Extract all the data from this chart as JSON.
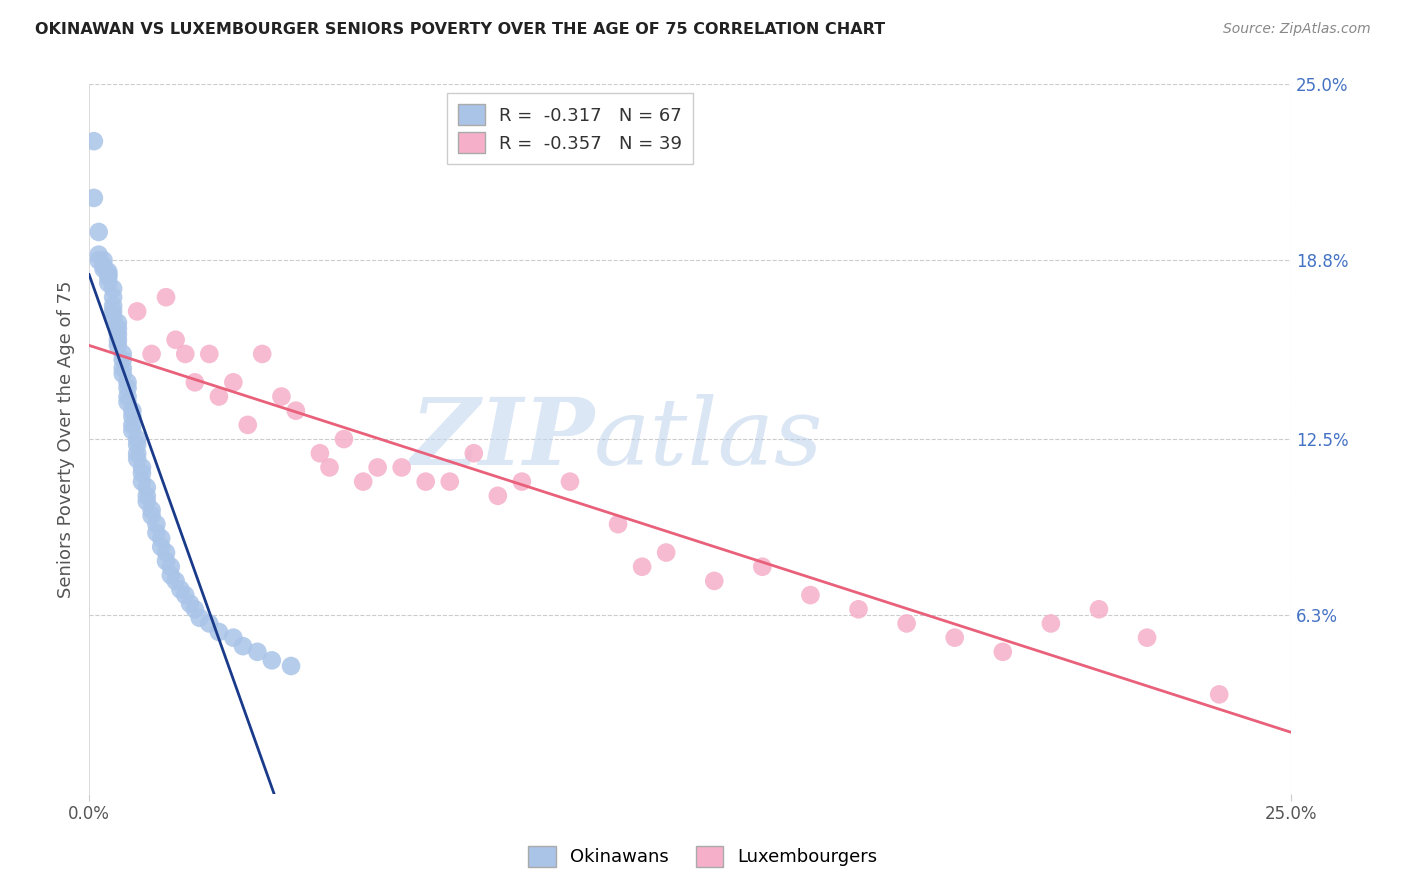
{
  "title": "OKINAWAN VS LUXEMBOURGER SENIORS POVERTY OVER THE AGE OF 75 CORRELATION CHART",
  "source": "Source: ZipAtlas.com",
  "ylabel": "Seniors Poverty Over the Age of 75",
  "xlim": [
    0.0,
    0.25
  ],
  "ylim": [
    0.0,
    0.25
  ],
  "ytick_labels_right": [
    "25.0%",
    "18.8%",
    "12.5%",
    "6.3%"
  ],
  "ytick_positions_right": [
    0.25,
    0.188,
    0.125,
    0.063
  ],
  "grid_color": "#cccccc",
  "background_color": "#ffffff",
  "okinawan_color": "#aac4e8",
  "luxembourger_color": "#f5afc8",
  "okinawan_line_color": "#1a3a8a",
  "luxembourger_line_color": "#e8607a",
  "R_okinawan": -0.317,
  "N_okinawan": 67,
  "R_luxembourger": -0.357,
  "N_luxembourger": 39,
  "watermark_zip": "ZIP",
  "watermark_atlas": "atlas",
  "legend_label_ok": "R =  -0.317   N = 67",
  "legend_label_lux": "R =  -0.357   N = 39",
  "ok_x": [
    0.001,
    0.001,
    0.002,
    0.002,
    0.002,
    0.003,
    0.003,
    0.003,
    0.004,
    0.004,
    0.004,
    0.004,
    0.005,
    0.005,
    0.005,
    0.005,
    0.005,
    0.006,
    0.006,
    0.006,
    0.006,
    0.006,
    0.007,
    0.007,
    0.007,
    0.007,
    0.008,
    0.008,
    0.008,
    0.008,
    0.009,
    0.009,
    0.009,
    0.009,
    0.01,
    0.01,
    0.01,
    0.01,
    0.011,
    0.011,
    0.011,
    0.012,
    0.012,
    0.012,
    0.013,
    0.013,
    0.014,
    0.014,
    0.015,
    0.015,
    0.016,
    0.016,
    0.017,
    0.017,
    0.018,
    0.019,
    0.02,
    0.021,
    0.022,
    0.023,
    0.025,
    0.027,
    0.03,
    0.032,
    0.035,
    0.038,
    0.042
  ],
  "ok_y": [
    0.23,
    0.21,
    0.198,
    0.19,
    0.188,
    0.188,
    0.186,
    0.185,
    0.184,
    0.183,
    0.182,
    0.18,
    0.178,
    0.175,
    0.172,
    0.17,
    0.168,
    0.166,
    0.164,
    0.162,
    0.16,
    0.158,
    0.155,
    0.153,
    0.15,
    0.148,
    0.145,
    0.143,
    0.14,
    0.138,
    0.135,
    0.133,
    0.13,
    0.128,
    0.125,
    0.123,
    0.12,
    0.118,
    0.115,
    0.113,
    0.11,
    0.108,
    0.105,
    0.103,
    0.1,
    0.098,
    0.095,
    0.092,
    0.09,
    0.087,
    0.085,
    0.082,
    0.08,
    0.077,
    0.075,
    0.072,
    0.07,
    0.067,
    0.065,
    0.062,
    0.06,
    0.057,
    0.055,
    0.052,
    0.05,
    0.047,
    0.045
  ],
  "lux_x": [
    0.01,
    0.013,
    0.016,
    0.018,
    0.02,
    0.022,
    0.025,
    0.027,
    0.03,
    0.033,
    0.036,
    0.04,
    0.043,
    0.048,
    0.05,
    0.053,
    0.057,
    0.06,
    0.065,
    0.07,
    0.075,
    0.08,
    0.085,
    0.09,
    0.1,
    0.11,
    0.115,
    0.12,
    0.13,
    0.14,
    0.15,
    0.16,
    0.17,
    0.18,
    0.19,
    0.2,
    0.21,
    0.22,
    0.235
  ],
  "lux_y": [
    0.17,
    0.155,
    0.175,
    0.16,
    0.155,
    0.145,
    0.155,
    0.14,
    0.145,
    0.13,
    0.155,
    0.14,
    0.135,
    0.12,
    0.115,
    0.125,
    0.11,
    0.115,
    0.115,
    0.11,
    0.11,
    0.12,
    0.105,
    0.11,
    0.11,
    0.095,
    0.08,
    0.085,
    0.075,
    0.08,
    0.07,
    0.065,
    0.06,
    0.055,
    0.05,
    0.06,
    0.065,
    0.055,
    0.035
  ]
}
